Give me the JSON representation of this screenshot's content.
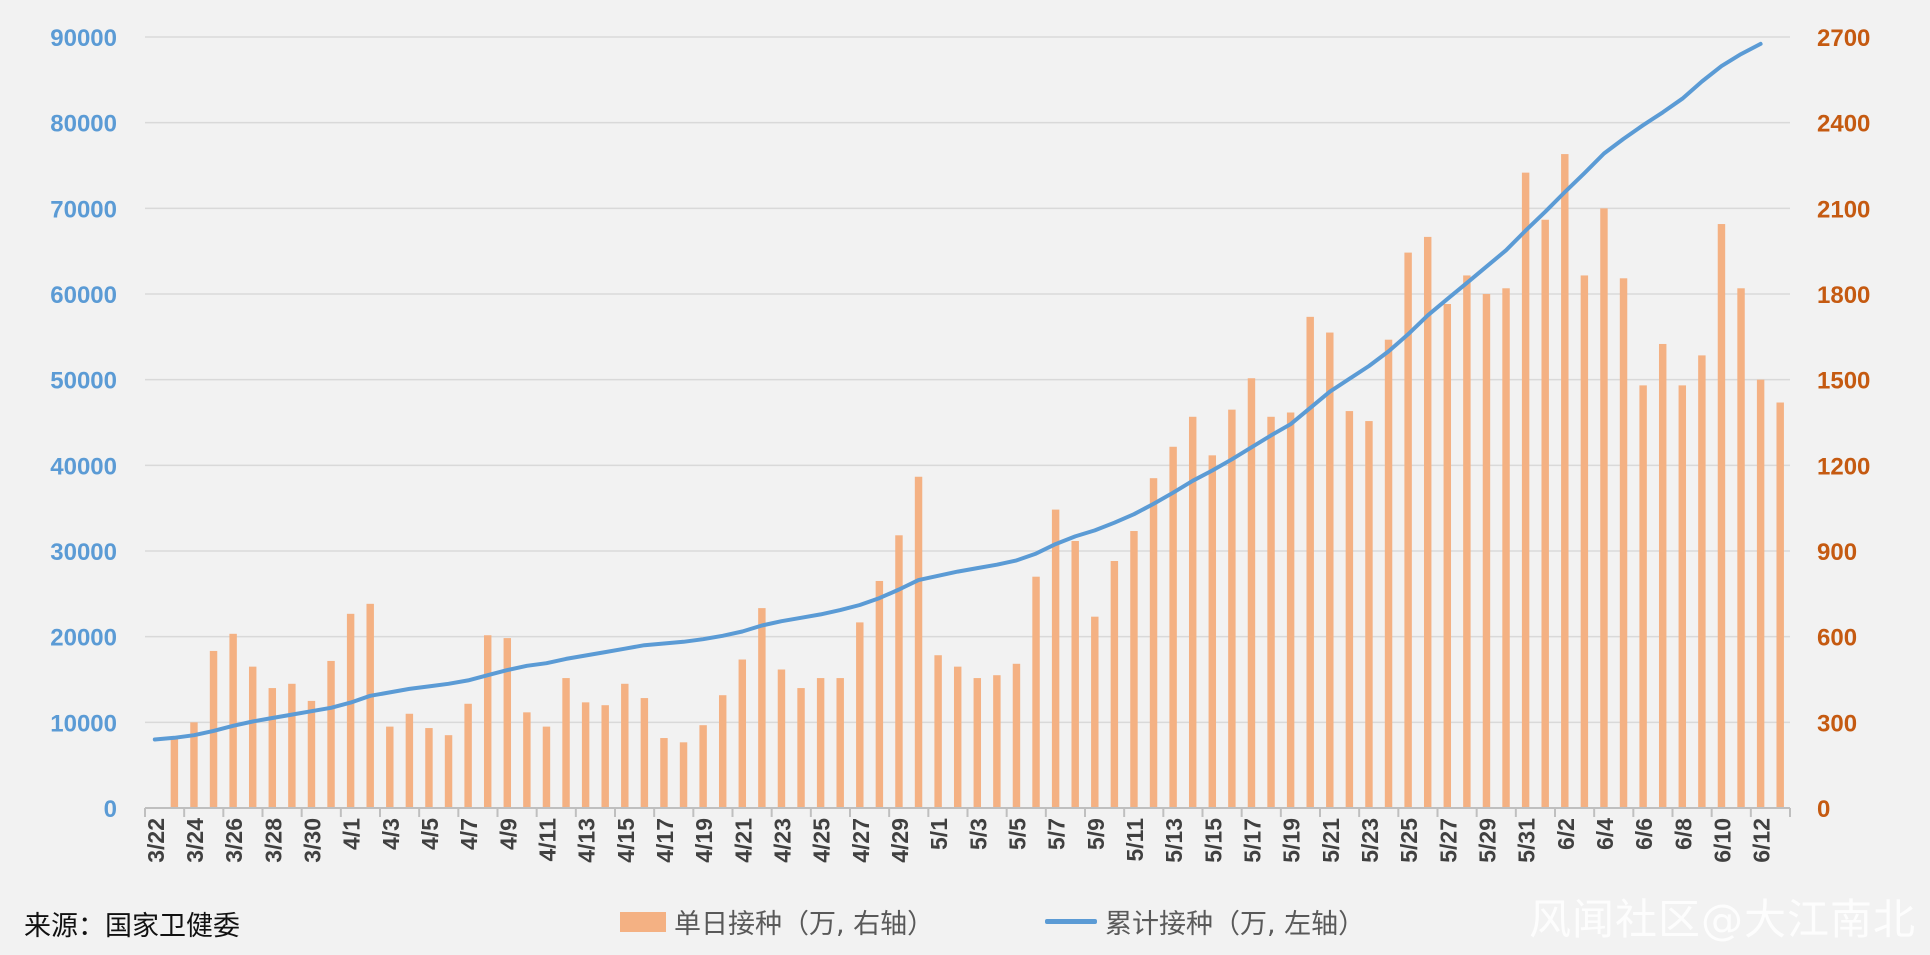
{
  "chart_data": {
    "type": "bar+line",
    "left_axis": {
      "ticks": [
        "0",
        "10000",
        "20000",
        "30000",
        "40000",
        "50000",
        "60000",
        "70000",
        "80000",
        "90000"
      ],
      "ylim": [
        0,
        90000
      ],
      "color": "#5b9bd5"
    },
    "right_axis": {
      "ticks": [
        "0",
        "300",
        "600",
        "900",
        "1200",
        "1500",
        "1800",
        "2100",
        "2400",
        "2700"
      ],
      "ylim": [
        0,
        2700
      ],
      "color": "#c55a11"
    },
    "categories": [
      "3/22",
      "3/23",
      "3/24",
      "3/25",
      "3/26",
      "3/27",
      "3/28",
      "3/29",
      "3/30",
      "3/31",
      "4/1",
      "4/2",
      "4/3",
      "4/4",
      "4/5",
      "4/6",
      "4/7",
      "4/8",
      "4/9",
      "4/10",
      "4/11",
      "4/12",
      "4/13",
      "4/14",
      "4/15",
      "4/16",
      "4/17",
      "4/18",
      "4/19",
      "4/20",
      "4/21",
      "4/22",
      "4/23",
      "4/24",
      "4/25",
      "4/26",
      "4/27",
      "4/28",
      "4/29",
      "4/30",
      "5/1",
      "5/2",
      "5/3",
      "5/4",
      "5/5",
      "5/6",
      "5/7",
      "5/8",
      "5/9",
      "5/10",
      "5/11",
      "5/12",
      "5/13",
      "5/14",
      "5/15",
      "5/16",
      "5/17",
      "5/18",
      "5/19",
      "5/20",
      "5/21",
      "5/22",
      "5/23",
      "5/24",
      "5/25",
      "5/26",
      "5/27",
      "5/28",
      "5/29",
      "5/30",
      "5/31",
      "6/1",
      "6/2",
      "6/3",
      "6/4",
      "6/5",
      "6/6",
      "6/7",
      "6/8",
      "6/9",
      "6/10",
      "6/11",
      "6/12",
      "6/13"
    ],
    "x_tick_labels": [
      "3/22",
      "3/24",
      "3/26",
      "3/28",
      "3/30",
      "4/1",
      "4/3",
      "4/5",
      "4/7",
      "4/9",
      "4/11",
      "4/13",
      "4/15",
      "4/17",
      "4/19",
      "4/21",
      "4/23",
      "4/25",
      "4/27",
      "4/29",
      "5/1",
      "5/3",
      "5/5",
      "5/7",
      "5/9",
      "5/11",
      "5/13",
      "5/15",
      "5/17",
      "5/19",
      "5/21",
      "5/23",
      "5/25",
      "5/27",
      "5/29",
      "5/31",
      "6/2",
      "6/4",
      "6/6",
      "6/8",
      "6/10",
      "6/12"
    ],
    "series": [
      {
        "name": "单日接种（万, 右轴）",
        "type": "bar",
        "axis": "right",
        "color": "#f4b183",
        "values": [
          null,
          245,
          300,
          550,
          610,
          495,
          420,
          435,
          375,
          515,
          680,
          715,
          285,
          330,
          280,
          255,
          365,
          605,
          595,
          335,
          285,
          455,
          370,
          360,
          435,
          385,
          245,
          230,
          290,
          395,
          520,
          700,
          485,
          420,
          455,
          455,
          650,
          795,
          955,
          1160,
          535,
          495,
          455,
          465,
          505,
          810,
          1045,
          935,
          670,
          865,
          970,
          1155,
          1265,
          1370,
          1235,
          1395,
          1505,
          1370,
          1385,
          1720,
          1665,
          1390,
          1355,
          1640,
          1945,
          2000,
          1765,
          1865,
          1800,
          1820,
          2225,
          2060,
          2290,
          1865,
          2100,
          1855,
          1480,
          1625,
          1480,
          1585,
          2045,
          1820,
          1500,
          1420
        ]
      },
      {
        "name": "累计接种（万, 左轴）",
        "type": "line",
        "axis": "left",
        "color": "#5b9bd5",
        "values": [
          8000,
          8200,
          8500,
          9000,
          9600,
          10100,
          10500,
          10900,
          11300,
          11700,
          12300,
          13100,
          13500,
          13900,
          14200,
          14500,
          14900,
          15500,
          16100,
          16600,
          16900,
          17400,
          17800,
          18200,
          18600,
          19000,
          19200,
          19400,
          19700,
          20100,
          20600,
          21300,
          21800,
          22200,
          22600,
          23100,
          23700,
          24500,
          25500,
          26600,
          27100,
          27600,
          28000,
          28400,
          28900,
          29700,
          30800,
          31700,
          32400,
          33300,
          34300,
          35500,
          36800,
          38200,
          39400,
          40700,
          42100,
          43500,
          44800,
          46700,
          48600,
          50100,
          51600,
          53300,
          55300,
          57500,
          59400,
          61300,
          63200,
          65100,
          67400,
          69600,
          71900,
          74100,
          76400,
          78100,
          79700,
          81200,
          82800,
          84800,
          86600,
          88000,
          89200,
          null
        ]
      }
    ],
    "legend": [
      "单日接种（万, 右轴）",
      "累计接种（万, 左轴）"
    ],
    "grid": true,
    "legend_position": "bottom"
  },
  "source_label": "来源：国家卫健委",
  "watermark": "风闻社区@大江南北"
}
